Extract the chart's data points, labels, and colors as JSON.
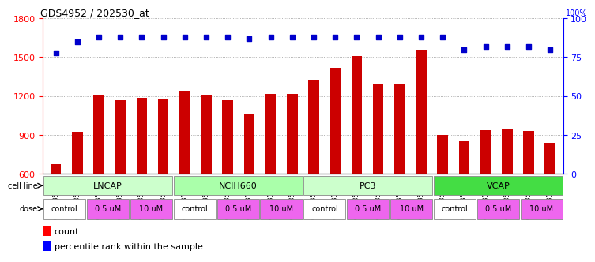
{
  "title": "GDS4952 / 202530_at",
  "samples": [
    "GSM1359772",
    "GSM1359773",
    "GSM1359774",
    "GSM1359775",
    "GSM1359776",
    "GSM1359777",
    "GSM1359760",
    "GSM1359761",
    "GSM1359762",
    "GSM1359763",
    "GSM1359764",
    "GSM1359765",
    "GSM1359778",
    "GSM1359779",
    "GSM1359780",
    "GSM1359781",
    "GSM1359782",
    "GSM1359783",
    "GSM1359766",
    "GSM1359767",
    "GSM1359768",
    "GSM1359769",
    "GSM1359770",
    "GSM1359771"
  ],
  "counts": [
    670,
    920,
    1210,
    1165,
    1185,
    1175,
    1240,
    1210,
    1165,
    1060,
    1215,
    1215,
    1320,
    1420,
    1510,
    1290,
    1295,
    1555,
    900,
    850,
    935,
    940,
    930,
    840
  ],
  "percentiles": [
    78,
    85,
    88,
    88,
    88,
    88,
    88,
    88,
    88,
    87,
    88,
    88,
    88,
    88,
    88,
    88,
    88,
    88,
    88,
    80,
    82,
    82,
    82,
    80
  ],
  "cell_lines": [
    {
      "name": "LNCAP",
      "start": 0,
      "end": 6,
      "color": "#ccffcc"
    },
    {
      "name": "NCIH660",
      "start": 6,
      "end": 12,
      "color": "#aaffaa"
    },
    {
      "name": "PC3",
      "start": 12,
      "end": 18,
      "color": "#ccffcc"
    },
    {
      "name": "VCAP",
      "start": 18,
      "end": 24,
      "color": "#44dd44"
    }
  ],
  "doses": [
    {
      "label": "control",
      "start": 0,
      "end": 2,
      "color": "#ffffff"
    },
    {
      "label": "0.5 uM",
      "start": 2,
      "end": 4,
      "color": "#ee66ee"
    },
    {
      "label": "10 uM",
      "start": 4,
      "end": 6,
      "color": "#ee66ee"
    },
    {
      "label": "control",
      "start": 6,
      "end": 8,
      "color": "#ffffff"
    },
    {
      "label": "0.5 uM",
      "start": 8,
      "end": 10,
      "color": "#ee66ee"
    },
    {
      "label": "10 uM",
      "start": 10,
      "end": 12,
      "color": "#ee66ee"
    },
    {
      "label": "control",
      "start": 12,
      "end": 14,
      "color": "#ffffff"
    },
    {
      "label": "0.5 uM",
      "start": 14,
      "end": 16,
      "color": "#ee66ee"
    },
    {
      "label": "10 uM",
      "start": 16,
      "end": 18,
      "color": "#ee66ee"
    },
    {
      "label": "control",
      "start": 18,
      "end": 20,
      "color": "#ffffff"
    },
    {
      "label": "0.5 uM",
      "start": 20,
      "end": 22,
      "color": "#ee66ee"
    },
    {
      "label": "10 uM",
      "start": 22,
      "end": 24,
      "color": "#ee66ee"
    }
  ],
  "ylim_left": [
    600,
    1800
  ],
  "ylim_right": [
    0,
    100
  ],
  "yticks_left": [
    600,
    900,
    1200,
    1500,
    1800
  ],
  "yticks_right": [
    0,
    25,
    50,
    75,
    100
  ],
  "bar_color": "#cc0000",
  "dot_color": "#0000cc",
  "bg_color": "#ffffff",
  "bar_width": 0.5,
  "dot_size": 25,
  "grid_color": "#999999",
  "label_fontsize": 8,
  "tick_fontsize": 8,
  "sample_fontsize": 6
}
